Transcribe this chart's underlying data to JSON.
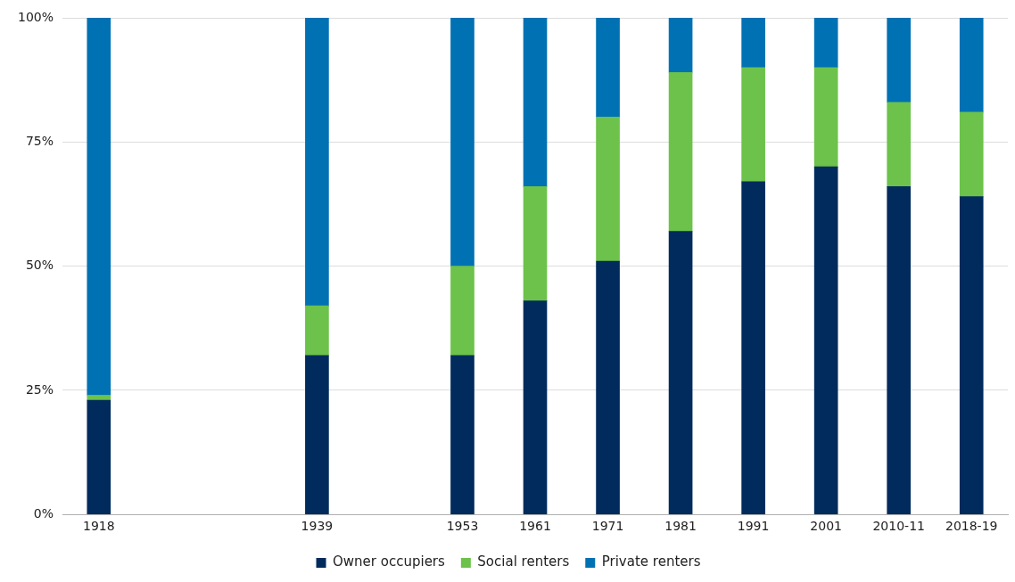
{
  "chart_data": {
    "type": "bar",
    "stacked": true,
    "categories": [
      "1918",
      null,
      null,
      "1939",
      null,
      "1953",
      "1961",
      "1971",
      "1981",
      "1991",
      "2001",
      "2010-11",
      "2018-19"
    ],
    "series": [
      {
        "name": "Owner occupiers",
        "color": "#002b5c",
        "values": [
          23,
          null,
          null,
          32,
          null,
          32,
          43,
          51,
          57,
          67,
          70,
          66,
          64
        ]
      },
      {
        "name": "Social renters",
        "color": "#6cc24a",
        "values": [
          1,
          null,
          null,
          10,
          null,
          18,
          23,
          29,
          32,
          23,
          20,
          17,
          17
        ]
      },
      {
        "name": "Private renters",
        "color": "#0071b3",
        "values": [
          76,
          null,
          null,
          58,
          null,
          50,
          34,
          20,
          11,
          10,
          10,
          17,
          19
        ]
      }
    ],
    "ylim": [
      0,
      100
    ],
    "yticks": [
      {
        "value": 0,
        "label": "0%"
      },
      {
        "value": 25,
        "label": "25%"
      },
      {
        "value": 50,
        "label": "50%"
      },
      {
        "value": 75,
        "label": "75%"
      },
      {
        "value": 100,
        "label": "100%"
      }
    ],
    "grid": "y",
    "legend": "bottom"
  }
}
